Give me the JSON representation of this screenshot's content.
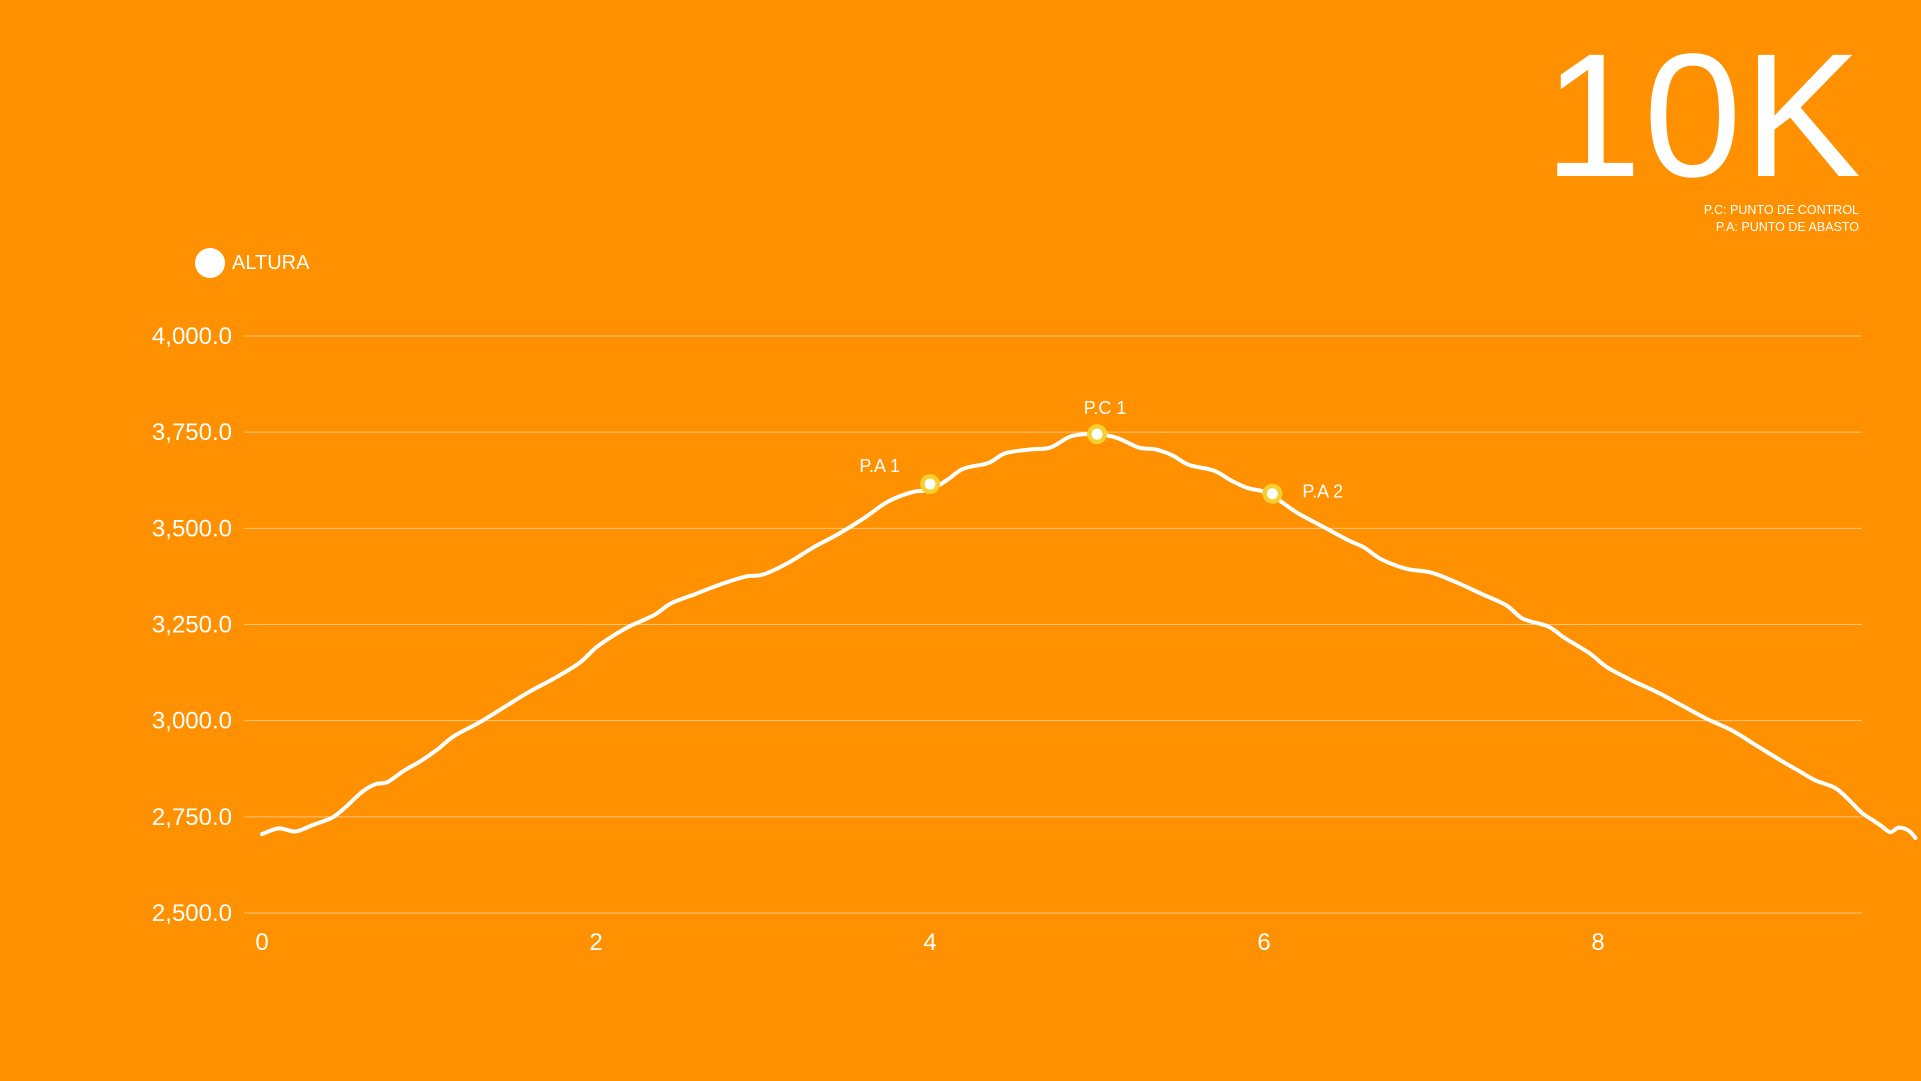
{
  "title": "10K",
  "notes": [
    "P.C: PUNTO DE CONTROL",
    "P.A: PUNTO DE ABASTO"
  ],
  "colors": {
    "background": "#FF9000",
    "line": "#FFFFFF",
    "marker_ring": "#F7CF2E",
    "grid": "#FFC680"
  },
  "chart_data": {
    "type": "line",
    "title": "",
    "xlabel": "",
    "ylabel": "",
    "legend": {
      "label": "ALTURA",
      "placement": "top-left"
    },
    "grid": true,
    "xlim": [
      0,
      9.7
    ],
    "ylim": [
      2500,
      4000
    ],
    "xticks": [
      0,
      2,
      4,
      6,
      8
    ],
    "xtick_labels": [
      "0",
      "2",
      "4",
      "6",
      "8"
    ],
    "yticks": [
      2500,
      2750,
      3000,
      3250,
      3500,
      3750,
      4000
    ],
    "ytick_labels": [
      "2,500.0",
      "2,750.0",
      "3,000.0",
      "3,250.0",
      "3,500.0",
      "3,750.0",
      "4,000.0"
    ],
    "series": [
      {
        "name": "ALTURA",
        "points": [
          [
            0.0,
            2705
          ],
          [
            0.1,
            2720
          ],
          [
            0.2,
            2712
          ],
          [
            0.3,
            2728
          ],
          [
            0.42,
            2748
          ],
          [
            0.5,
            2775
          ],
          [
            0.6,
            2815
          ],
          [
            0.68,
            2835
          ],
          [
            0.75,
            2840
          ],
          [
            0.85,
            2870
          ],
          [
            0.95,
            2895
          ],
          [
            1.05,
            2925
          ],
          [
            1.15,
            2960
          ],
          [
            1.3,
            2995
          ],
          [
            1.45,
            3035
          ],
          [
            1.6,
            3075
          ],
          [
            1.75,
            3110
          ],
          [
            1.9,
            3150
          ],
          [
            2.0,
            3190
          ],
          [
            2.1,
            3220
          ],
          [
            2.2,
            3245
          ],
          [
            2.35,
            3275
          ],
          [
            2.45,
            3305
          ],
          [
            2.6,
            3330
          ],
          [
            2.75,
            3355
          ],
          [
            2.9,
            3375
          ],
          [
            3.0,
            3380
          ],
          [
            3.15,
            3410
          ],
          [
            3.3,
            3450
          ],
          [
            3.45,
            3485
          ],
          [
            3.6,
            3525
          ],
          [
            3.75,
            3570
          ],
          [
            3.9,
            3595
          ],
          [
            4.0,
            3600
          ],
          [
            4.1,
            3625
          ],
          [
            4.2,
            3655
          ],
          [
            4.35,
            3670
          ],
          [
            4.45,
            3695
          ],
          [
            4.6,
            3705
          ],
          [
            4.72,
            3710
          ],
          [
            4.85,
            3740
          ],
          [
            5.0,
            3745
          ],
          [
            5.12,
            3735
          ],
          [
            5.25,
            3710
          ],
          [
            5.35,
            3705
          ],
          [
            5.45,
            3690
          ],
          [
            5.55,
            3665
          ],
          [
            5.7,
            3650
          ],
          [
            5.8,
            3625
          ],
          [
            5.9,
            3605
          ],
          [
            6.0,
            3595
          ],
          [
            6.1,
            3570
          ],
          [
            6.2,
            3540
          ],
          [
            6.35,
            3505
          ],
          [
            6.5,
            3470
          ],
          [
            6.6,
            3450
          ],
          [
            6.7,
            3420
          ],
          [
            6.85,
            3395
          ],
          [
            7.0,
            3385
          ],
          [
            7.15,
            3360
          ],
          [
            7.3,
            3330
          ],
          [
            7.45,
            3300
          ],
          [
            7.55,
            3265
          ],
          [
            7.7,
            3245
          ],
          [
            7.8,
            3215
          ],
          [
            7.95,
            3175
          ],
          [
            8.05,
            3140
          ],
          [
            8.2,
            3105
          ],
          [
            8.35,
            3075
          ],
          [
            8.5,
            3040
          ],
          [
            8.65,
            3005
          ],
          [
            8.8,
            2975
          ],
          [
            8.95,
            2935
          ],
          [
            9.1,
            2895
          ],
          [
            9.2,
            2870
          ],
          [
            9.3,
            2845
          ],
          [
            9.42,
            2825
          ],
          [
            9.5,
            2795
          ],
          [
            9.58,
            2760
          ],
          [
            9.65,
            2740
          ],
          [
            9.7,
            2725
          ],
          [
            9.75,
            2710
          ],
          [
            9.8,
            2722
          ],
          [
            9.86,
            2714
          ],
          [
            9.9,
            2695
          ]
        ]
      }
    ],
    "annotations": [
      {
        "label": "P.A 1",
        "x": 4.0,
        "y": 3615
      },
      {
        "label": "P.C 1",
        "x": 5.0,
        "y": 3745
      },
      {
        "label": "P.A 2",
        "x": 6.05,
        "y": 3590
      }
    ]
  }
}
